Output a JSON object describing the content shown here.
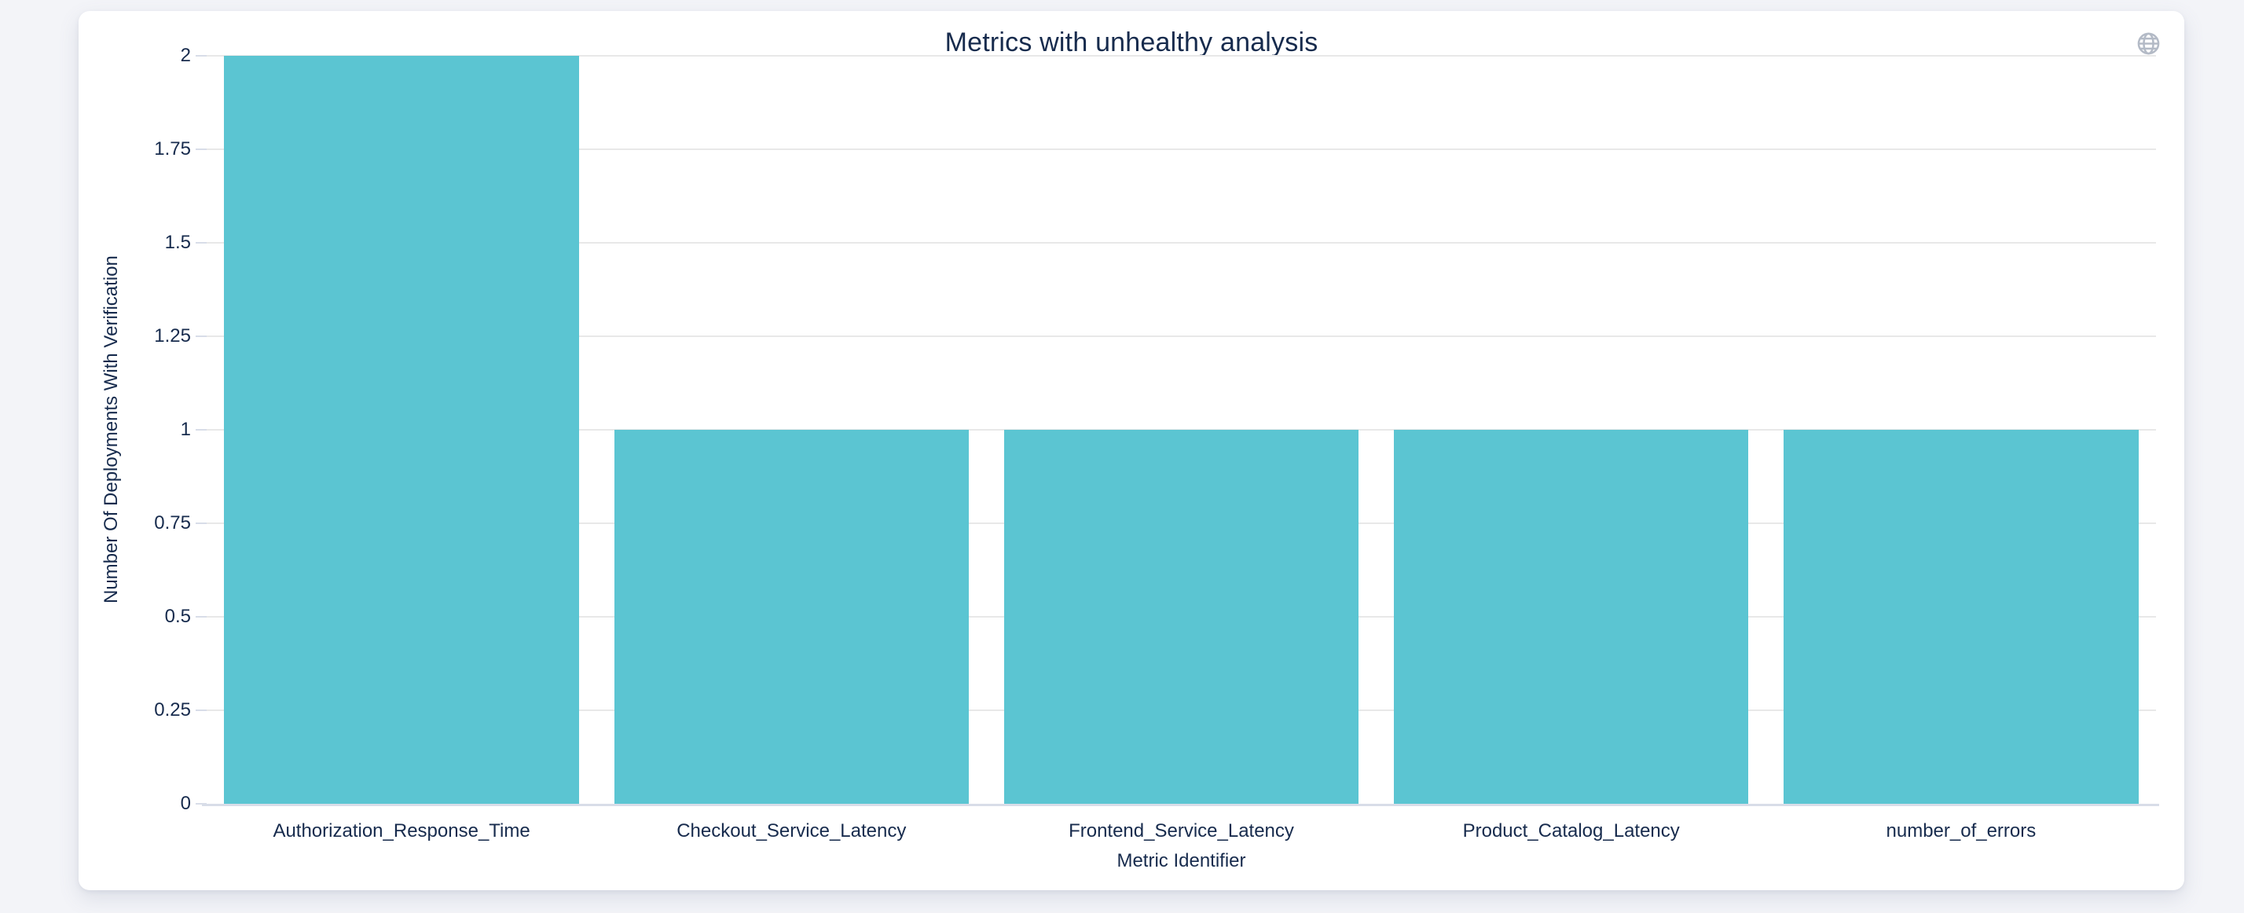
{
  "colors": {
    "page_background": "#f3f4f8",
    "card_background": "#ffffff",
    "text": "#172b4d",
    "bar": "#5bc5d2",
    "gridline": "#e8e8e8",
    "axis_line": "#d8dde8",
    "icon": "#b3bac6"
  },
  "header": {
    "icon": "globe-icon"
  },
  "chart_data": {
    "type": "bar",
    "title": "Metrics with unhealthy analysis",
    "categories": [
      "Authorization_Response_Time",
      "Checkout_Service_Latency",
      "Frontend_Service_Latency",
      "Product_Catalog_Latency",
      "number_of_errors"
    ],
    "values": [
      2,
      1,
      1,
      1,
      1
    ],
    "xlabel": "Metric Identifier",
    "ylabel": "Number Of Deployments With Verification",
    "ylim": [
      0,
      2
    ],
    "yticks": [
      0,
      0.25,
      0.5,
      0.75,
      1,
      1.25,
      1.5,
      1.75,
      2
    ],
    "grid": true,
    "legend": false,
    "bar_color": "#5bc5d2"
  }
}
